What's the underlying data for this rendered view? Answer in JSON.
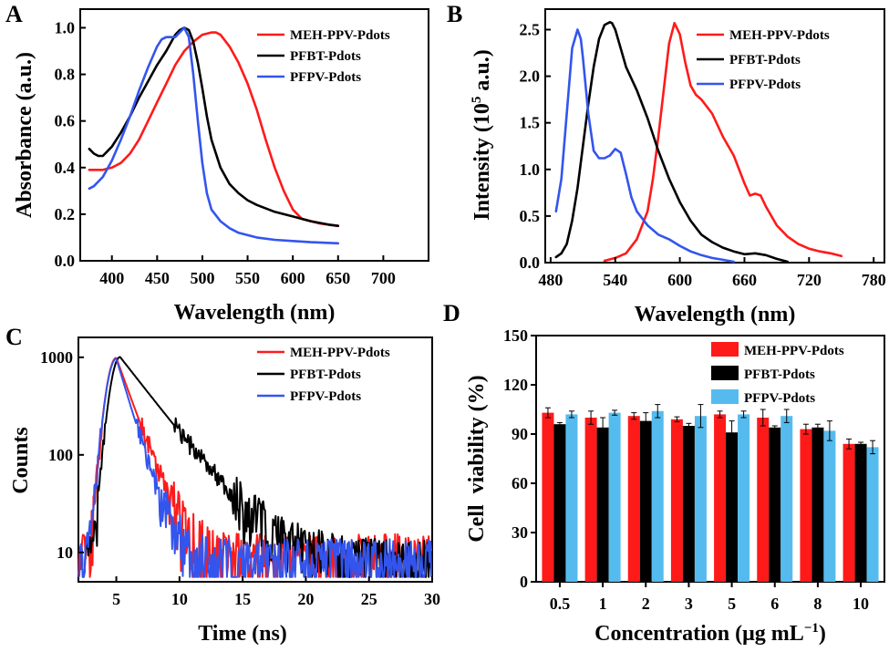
{
  "colors": {
    "red": "#ff1a1a",
    "black": "#000000",
    "blue": "#3355ee",
    "lightblue": "#55bbee"
  },
  "chart_data": [
    {
      "panel": "A",
      "type": "line",
      "xlabel": "Wavelength (nm)",
      "ylabel": "Absorbance (a.u.)",
      "xlim": [
        365,
        750
      ],
      "ylim": [
        0,
        1.08
      ],
      "xticks": [
        400,
        450,
        500,
        550,
        600,
        650,
        700
      ],
      "yticks": [
        0.0,
        0.2,
        0.4,
        0.6,
        0.8,
        1.0
      ],
      "ytick_labels": [
        "0.0",
        "0.2",
        "0.4",
        "0.6",
        "0.8",
        "1.0"
      ],
      "legend": [
        "MEH-PPV-Pdots",
        "PFBT-Pdots",
        "PFPV-Pdots"
      ],
      "series": [
        {
          "name": "MEH-PPV-Pdots",
          "color": "red",
          "x": [
            375,
            390,
            400,
            410,
            420,
            430,
            440,
            450,
            460,
            470,
            480,
            490,
            500,
            510,
            515,
            520,
            530,
            540,
            550,
            560,
            570,
            580,
            590,
            600,
            610,
            620,
            630,
            640,
            650
          ],
          "y": [
            0.39,
            0.39,
            0.4,
            0.42,
            0.46,
            0.52,
            0.6,
            0.68,
            0.76,
            0.84,
            0.9,
            0.94,
            0.97,
            0.98,
            0.98,
            0.97,
            0.92,
            0.85,
            0.76,
            0.65,
            0.52,
            0.4,
            0.3,
            0.22,
            0.18,
            0.17,
            0.16,
            0.155,
            0.15
          ]
        },
        {
          "name": "PFBT-Pdots",
          "color": "black",
          "x": [
            375,
            380,
            385,
            390,
            400,
            410,
            420,
            430,
            440,
            450,
            460,
            470,
            475,
            480,
            485,
            490,
            495,
            500,
            505,
            510,
            520,
            530,
            540,
            550,
            560,
            580,
            600,
            620,
            640,
            650
          ],
          "y": [
            0.48,
            0.46,
            0.45,
            0.45,
            0.49,
            0.55,
            0.62,
            0.7,
            0.77,
            0.84,
            0.9,
            0.97,
            0.99,
            1.0,
            0.99,
            0.94,
            0.85,
            0.74,
            0.62,
            0.52,
            0.4,
            0.33,
            0.29,
            0.26,
            0.24,
            0.21,
            0.19,
            0.17,
            0.155,
            0.15
          ]
        },
        {
          "name": "PFPV-Pdots",
          "color": "blue",
          "x": [
            375,
            380,
            390,
            400,
            410,
            420,
            430,
            440,
            450,
            455,
            460,
            465,
            470,
            475,
            480,
            485,
            490,
            495,
            500,
            505,
            510,
            520,
            530,
            540,
            560,
            580,
            600,
            620,
            650
          ],
          "y": [
            0.31,
            0.32,
            0.36,
            0.43,
            0.52,
            0.62,
            0.73,
            0.83,
            0.92,
            0.95,
            0.96,
            0.96,
            0.96,
            0.98,
            1.0,
            0.96,
            0.8,
            0.6,
            0.42,
            0.29,
            0.22,
            0.17,
            0.14,
            0.12,
            0.1,
            0.09,
            0.085,
            0.08,
            0.075
          ]
        }
      ]
    },
    {
      "panel": "B",
      "type": "line",
      "xlabel": "Wavelength (nm)",
      "ylabel": "Intensity (10",
      "ylabel_sup": "5",
      "ylabel_tail": " a.u.)",
      "xlim": [
        475,
        790
      ],
      "ylim": [
        0,
        2.72
      ],
      "xticks": [
        480,
        540,
        600,
        660,
        720,
        780
      ],
      "yticks": [
        0.0,
        0.5,
        1.0,
        1.5,
        2.0,
        2.5
      ],
      "ytick_labels": [
        "0.0",
        "0.5",
        "1.0",
        "1.5",
        "2.0",
        "2.5"
      ],
      "legend": [
        "MEH-PPV-Pdots",
        "PFBT-Pdots",
        "PFPV-Pdots"
      ],
      "series": [
        {
          "name": "MEH-PPV-Pdots",
          "color": "red",
          "x": [
            530,
            540,
            550,
            560,
            570,
            575,
            580,
            585,
            590,
            595,
            600,
            605,
            610,
            615,
            620,
            630,
            640,
            650,
            660,
            665,
            670,
            675,
            680,
            690,
            700,
            710,
            720,
            730,
            740,
            750
          ],
          "y": [
            0.02,
            0.05,
            0.1,
            0.25,
            0.55,
            0.9,
            1.35,
            1.85,
            2.35,
            2.57,
            2.45,
            2.15,
            1.9,
            1.8,
            1.75,
            1.6,
            1.35,
            1.15,
            0.85,
            0.72,
            0.74,
            0.72,
            0.6,
            0.4,
            0.28,
            0.2,
            0.15,
            0.12,
            0.1,
            0.07
          ]
        },
        {
          "name": "PFBT-Pdots",
          "color": "black",
          "x": [
            485,
            490,
            495,
            500,
            505,
            510,
            515,
            520,
            525,
            530,
            535,
            537,
            540,
            545,
            550,
            560,
            570,
            580,
            590,
            600,
            610,
            620,
            630,
            640,
            650,
            660,
            670,
            680,
            690,
            700
          ],
          "y": [
            0.06,
            0.1,
            0.2,
            0.45,
            0.8,
            1.25,
            1.7,
            2.1,
            2.4,
            2.55,
            2.58,
            2.57,
            2.5,
            2.3,
            2.1,
            1.85,
            1.55,
            1.2,
            0.9,
            0.65,
            0.45,
            0.3,
            0.22,
            0.16,
            0.12,
            0.09,
            0.1,
            0.08,
            0.04,
            0.01
          ]
        },
        {
          "name": "PFPV-Pdots",
          "color": "blue",
          "x": [
            485,
            490,
            495,
            500,
            505,
            508,
            510,
            515,
            520,
            525,
            530,
            535,
            540,
            545,
            550,
            555,
            560,
            570,
            580,
            590,
            600,
            610,
            620,
            630,
            640,
            650
          ],
          "y": [
            0.55,
            0.9,
            1.6,
            2.3,
            2.5,
            2.4,
            2.2,
            1.6,
            1.2,
            1.12,
            1.12,
            1.15,
            1.22,
            1.18,
            0.95,
            0.7,
            0.55,
            0.4,
            0.3,
            0.25,
            0.18,
            0.12,
            0.08,
            0.05,
            0.03,
            0.01
          ]
        }
      ]
    },
    {
      "panel": "C",
      "type": "line",
      "yscale": "log",
      "xlabel": "Time (ns)",
      "ylabel": "Counts",
      "xlim": [
        2,
        30
      ],
      "ylim": [
        5,
        1600
      ],
      "xticks": [
        5,
        10,
        15,
        20,
        25,
        30
      ],
      "yticks": [
        10,
        100,
        1000
      ],
      "ytick_labels": [
        "10",
        "100",
        "1000"
      ],
      "legend": [
        "MEH-PPV-Pdots",
        "PFBT-Pdots",
        "PFPV-Pdots"
      ],
      "series": [
        {
          "name": "MEH-PPV-Pdots",
          "color": "red",
          "peak_time": 5.0,
          "peak": 980,
          "decay_ns": 1.2,
          "floor": 9,
          "noise": 0.45,
          "end": 30
        },
        {
          "name": "PFBT-Pdots",
          "color": "black",
          "peak_time": 5.3,
          "peak": 1000,
          "decay_ns": 2.6,
          "floor": 8,
          "noise": 0.4,
          "end": 30
        },
        {
          "name": "PFPV-Pdots",
          "color": "blue",
          "peak_time": 5.0,
          "peak": 960,
          "decay_ns": 1.0,
          "floor": 8,
          "noise": 0.45,
          "end": 30
        }
      ]
    },
    {
      "panel": "D",
      "type": "bar",
      "xlabel": "Concentration (μg mL",
      "xlabel_sup": "−1",
      "xlabel_tail": ")",
      "ylabel": "Cell  viability (%)",
      "ylim": [
        0,
        150
      ],
      "yticks": [
        0,
        30,
        60,
        90,
        120,
        150
      ],
      "ytick_labels": [
        "0",
        "30",
        "60",
        "90",
        "120",
        "150"
      ],
      "categories": [
        "0.5",
        "1",
        "2",
        "3",
        "5",
        "6",
        "8",
        "10"
      ],
      "legend": [
        "MEH-PPV-Pdots",
        "PFBT-Pdots",
        "PFPV-Pdots"
      ],
      "series": [
        {
          "name": "MEH-PPV-Pdots",
          "color": "red",
          "values": [
            103,
            100,
            101,
            99,
            102,
            100,
            93,
            84
          ],
          "errors": [
            3,
            4,
            2,
            1.5,
            2,
            5,
            3,
            3
          ]
        },
        {
          "name": "PFBT-Pdots",
          "color": "black",
          "values": [
            96,
            94,
            98,
            95,
            91,
            94,
            94,
            84
          ],
          "errors": [
            1,
            6,
            5,
            1.5,
            7,
            1,
            2,
            1
          ]
        },
        {
          "name": "PFPV-Pdots",
          "color": "lightblue",
          "values": [
            102,
            103,
            104,
            101,
            102,
            101,
            92,
            82
          ],
          "errors": [
            2,
            1.5,
            4,
            7,
            2,
            4,
            6,
            4
          ]
        }
      ]
    }
  ]
}
